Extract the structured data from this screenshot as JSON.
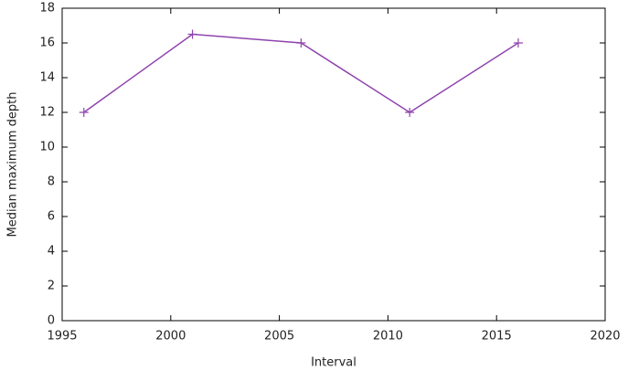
{
  "chart_data": {
    "type": "line",
    "x_label": "Interval",
    "y_label": "Median maximum depth",
    "x": [
      1996,
      2001,
      2006,
      2011,
      2016
    ],
    "series": [
      {
        "color": "#8e44ad",
        "values": [
          12,
          16.5,
          16,
          12,
          16
        ]
      }
    ],
    "xlim": [
      1995,
      2020
    ],
    "xticks": [
      1995,
      2000,
      2005,
      2010,
      2015,
      2020
    ],
    "ylim": [
      0,
      18
    ],
    "yticks": [
      0,
      2,
      4,
      6,
      8,
      10,
      12,
      14,
      16,
      18
    ],
    "grid": false,
    "markers": "+"
  }
}
